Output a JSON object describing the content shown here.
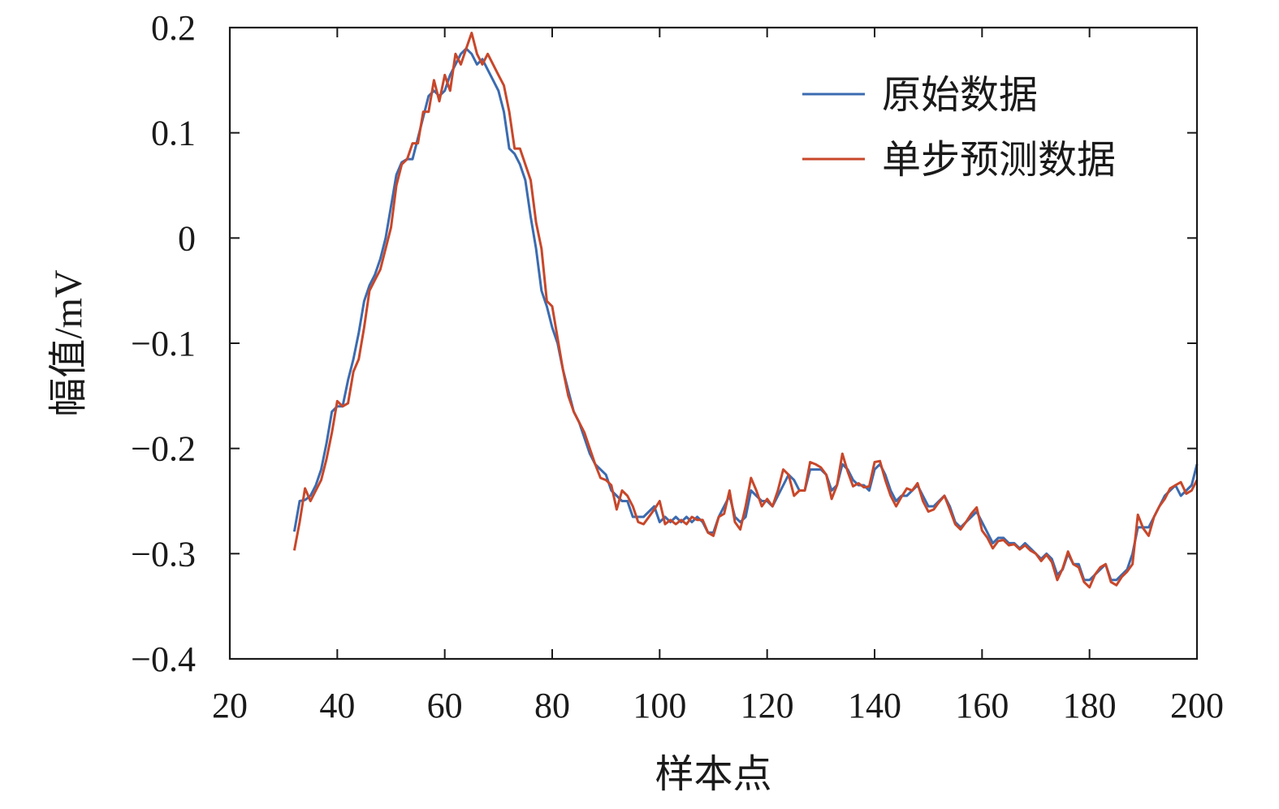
{
  "chart_data": {
    "type": "line",
    "title": "",
    "xlabel": "样本点",
    "ylabel": "幅值/mV",
    "xlim": [
      20,
      200
    ],
    "ylim": [
      -0.4,
      0.2
    ],
    "xticks": [
      20,
      40,
      60,
      80,
      100,
      120,
      140,
      160,
      180,
      200
    ],
    "yticks": [
      0.2,
      0.1,
      0,
      -0.1,
      -0.2,
      -0.3,
      -0.4
    ],
    "ytick_labels": [
      "0.2",
      "0.1",
      "0",
      "−0.1",
      "−0.2",
      "−0.3",
      "−0.4"
    ],
    "grid": false,
    "legend_position": "top-right",
    "series": [
      {
        "name": "原始数据",
        "color": "#3b6bb0",
        "x": [
          32,
          33,
          34,
          35,
          36,
          37,
          38,
          39,
          40,
          41,
          42,
          43,
          44,
          45,
          46,
          47,
          48,
          49,
          50,
          51,
          52,
          53,
          54,
          55,
          56,
          57,
          58,
          59,
          60,
          61,
          62,
          63,
          64,
          65,
          66,
          67,
          68,
          69,
          70,
          71,
          72,
          73,
          74,
          75,
          76,
          77,
          78,
          79,
          80,
          81,
          82,
          83,
          84,
          85,
          86,
          87,
          88,
          89,
          90,
          91,
          92,
          93,
          94,
          95,
          96,
          97,
          98,
          99,
          100,
          101,
          102,
          103,
          104,
          105,
          106,
          107,
          108,
          109,
          110,
          111,
          112,
          113,
          114,
          115,
          116,
          117,
          118,
          119,
          120,
          121,
          122,
          123,
          124,
          125,
          126,
          127,
          128,
          129,
          130,
          131,
          132,
          133,
          134,
          135,
          136,
          137,
          138,
          139,
          140,
          141,
          142,
          143,
          144,
          145,
          146,
          147,
          148,
          149,
          150,
          151,
          152,
          153,
          154,
          155,
          156,
          157,
          158,
          159,
          160,
          161,
          162,
          163,
          164,
          165,
          166,
          167,
          168,
          169,
          170,
          171,
          172,
          173,
          174,
          175,
          176,
          177,
          178,
          179,
          180,
          181,
          182,
          183,
          184,
          185,
          186,
          187,
          188,
          189,
          190,
          191,
          192,
          193,
          194,
          195,
          196,
          197,
          198,
          199,
          200
        ],
        "y": [
          -0.279,
          -0.25,
          -0.249,
          -0.245,
          -0.235,
          -0.22,
          -0.195,
          -0.165,
          -0.16,
          -0.16,
          -0.135,
          -0.115,
          -0.09,
          -0.06,
          -0.045,
          -0.035,
          -0.02,
          0.0,
          0.03,
          0.06,
          0.072,
          0.075,
          0.075,
          0.095,
          0.115,
          0.135,
          0.14,
          0.135,
          0.14,
          0.155,
          0.165,
          0.175,
          0.18,
          0.175,
          0.165,
          0.17,
          0.16,
          0.15,
          0.14,
          0.12,
          0.085,
          0.08,
          0.07,
          0.055,
          0.02,
          -0.01,
          -0.05,
          -0.065,
          -0.085,
          -0.1,
          -0.125,
          -0.145,
          -0.165,
          -0.175,
          -0.19,
          -0.205,
          -0.215,
          -0.22,
          -0.225,
          -0.24,
          -0.245,
          -0.25,
          -0.25,
          -0.265,
          -0.265,
          -0.265,
          -0.26,
          -0.255,
          -0.27,
          -0.265,
          -0.27,
          -0.265,
          -0.27,
          -0.265,
          -0.27,
          -0.265,
          -0.27,
          -0.28,
          -0.28,
          -0.265,
          -0.255,
          -0.245,
          -0.265,
          -0.27,
          -0.265,
          -0.24,
          -0.245,
          -0.25,
          -0.25,
          -0.255,
          -0.245,
          -0.235,
          -0.225,
          -0.23,
          -0.24,
          -0.24,
          -0.22,
          -0.22,
          -0.22,
          -0.225,
          -0.24,
          -0.235,
          -0.215,
          -0.22,
          -0.23,
          -0.235,
          -0.235,
          -0.24,
          -0.22,
          -0.215,
          -0.225,
          -0.24,
          -0.25,
          -0.245,
          -0.245,
          -0.24,
          -0.235,
          -0.245,
          -0.255,
          -0.255,
          -0.25,
          -0.245,
          -0.255,
          -0.27,
          -0.275,
          -0.27,
          -0.265,
          -0.26,
          -0.27,
          -0.28,
          -0.29,
          -0.285,
          -0.285,
          -0.29,
          -0.29,
          -0.295,
          -0.29,
          -0.295,
          -0.3,
          -0.305,
          -0.3,
          -0.305,
          -0.32,
          -0.315,
          -0.3,
          -0.31,
          -0.31,
          -0.325,
          -0.325,
          -0.32,
          -0.315,
          -0.31,
          -0.325,
          -0.325,
          -0.32,
          -0.315,
          -0.3,
          -0.275,
          -0.275,
          -0.275,
          -0.265,
          -0.255,
          -0.245,
          -0.24,
          -0.235,
          -0.245,
          -0.24,
          -0.235,
          -0.215
        ]
      },
      {
        "name": "单步预测数据",
        "color": "#c8472a",
        "x": [
          32,
          33,
          34,
          35,
          36,
          37,
          38,
          39,
          40,
          41,
          42,
          43,
          44,
          45,
          46,
          47,
          48,
          49,
          50,
          51,
          52,
          53,
          54,
          55,
          56,
          57,
          58,
          59,
          60,
          61,
          62,
          63,
          64,
          65,
          66,
          67,
          68,
          69,
          70,
          71,
          72,
          73,
          74,
          75,
          76,
          77,
          78,
          79,
          80,
          81,
          82,
          83,
          84,
          85,
          86,
          87,
          88,
          89,
          90,
          91,
          92,
          93,
          94,
          95,
          96,
          97,
          98,
          99,
          100,
          101,
          102,
          103,
          104,
          105,
          106,
          107,
          108,
          109,
          110,
          111,
          112,
          113,
          114,
          115,
          116,
          117,
          118,
          119,
          120,
          121,
          122,
          123,
          124,
          125,
          126,
          127,
          128,
          129,
          130,
          131,
          132,
          133,
          134,
          135,
          136,
          137,
          138,
          139,
          140,
          141,
          142,
          143,
          144,
          145,
          146,
          147,
          148,
          149,
          150,
          151,
          152,
          153,
          154,
          155,
          156,
          157,
          158,
          159,
          160,
          161,
          162,
          163,
          164,
          165,
          166,
          167,
          168,
          169,
          170,
          171,
          172,
          173,
          174,
          175,
          176,
          177,
          178,
          179,
          180,
          181,
          182,
          183,
          184,
          185,
          186,
          187,
          188,
          189,
          190,
          191,
          192,
          193,
          194,
          195,
          196,
          197,
          198,
          199,
          200
        ],
        "y": [
          -0.297,
          -0.27,
          -0.238,
          -0.25,
          -0.24,
          -0.23,
          -0.21,
          -0.185,
          -0.155,
          -0.16,
          -0.157,
          -0.127,
          -0.115,
          -0.085,
          -0.05,
          -0.04,
          -0.03,
          -0.01,
          0.01,
          0.05,
          0.07,
          0.075,
          0.09,
          0.09,
          0.12,
          0.12,
          0.15,
          0.13,
          0.155,
          0.14,
          0.175,
          0.165,
          0.18,
          0.195,
          0.175,
          0.165,
          0.175,
          0.165,
          0.155,
          0.145,
          0.12,
          0.085,
          0.085,
          0.07,
          0.055,
          0.015,
          -0.01,
          -0.06,
          -0.065,
          -0.095,
          -0.125,
          -0.15,
          -0.165,
          -0.175,
          -0.185,
          -0.2,
          -0.215,
          -0.228,
          -0.23,
          -0.235,
          -0.258,
          -0.24,
          -0.245,
          -0.255,
          -0.27,
          -0.272,
          -0.265,
          -0.258,
          -0.25,
          -0.272,
          -0.268,
          -0.272,
          -0.268,
          -0.272,
          -0.265,
          -0.268,
          -0.268,
          -0.28,
          -0.283,
          -0.265,
          -0.262,
          -0.24,
          -0.27,
          -0.277,
          -0.255,
          -0.228,
          -0.24,
          -0.255,
          -0.248,
          -0.255,
          -0.24,
          -0.22,
          -0.225,
          -0.245,
          -0.24,
          -0.24,
          -0.213,
          -0.215,
          -0.218,
          -0.225,
          -0.248,
          -0.235,
          -0.205,
          -0.222,
          -0.236,
          -0.233,
          -0.237,
          -0.236,
          -0.213,
          -0.212,
          -0.23,
          -0.245,
          -0.255,
          -0.246,
          -0.238,
          -0.24,
          -0.233,
          -0.25,
          -0.26,
          -0.258,
          -0.251,
          -0.245,
          -0.258,
          -0.272,
          -0.277,
          -0.27,
          -0.262,
          -0.256,
          -0.278,
          -0.285,
          -0.295,
          -0.288,
          -0.287,
          -0.292,
          -0.291,
          -0.296,
          -0.292,
          -0.297,
          -0.3,
          -0.307,
          -0.301,
          -0.308,
          -0.325,
          -0.314,
          -0.298,
          -0.31,
          -0.313,
          -0.327,
          -0.332,
          -0.32,
          -0.313,
          -0.31,
          -0.327,
          -0.33,
          -0.322,
          -0.317,
          -0.31,
          -0.263,
          -0.276,
          -0.283,
          -0.265,
          -0.255,
          -0.248,
          -0.238,
          -0.235,
          -0.232,
          -0.243,
          -0.24,
          -0.23
        ]
      }
    ]
  }
}
